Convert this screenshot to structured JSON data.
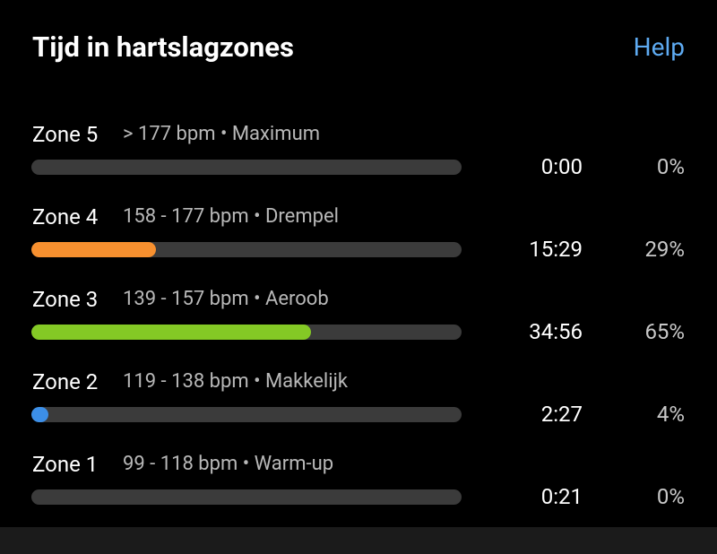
{
  "header": {
    "title": "Tijd in hartslagzones",
    "help": "Help"
  },
  "zones": [
    {
      "name": "Zone 5",
      "range": "> 177 bpm • Maximum",
      "time": "0:00",
      "percent": 0,
      "percent_label": "0%",
      "color": "#f0483e"
    },
    {
      "name": "Zone 4",
      "range": "158 - 177 bpm • Drempel",
      "time": "15:29",
      "percent": 29,
      "percent_label": "29%",
      "color": "#f7902f"
    },
    {
      "name": "Zone 3",
      "range": "139 - 157 bpm • Aeroob",
      "time": "34:56",
      "percent": 65,
      "percent_label": "65%",
      "color": "#84c925"
    },
    {
      "name": "Zone 2",
      "range": "119 - 138 bpm • Makkelijk",
      "time": "2:27",
      "percent": 4,
      "percent_label": "4%",
      "color": "#3c8fe8"
    },
    {
      "name": "Zone 1",
      "range": "99 - 118 bpm • Warm-up",
      "time": "0:21",
      "percent": 0,
      "percent_label": "0%",
      "color": "#9a9a9a"
    }
  ]
}
